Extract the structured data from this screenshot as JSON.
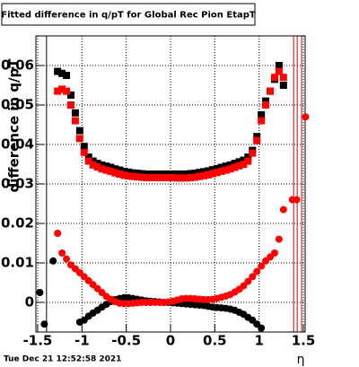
{
  "chart_data": {
    "type": "scatter",
    "title": "Fitted difference in q/pT for Global Rec Pion EtapT",
    "y_label": "difference in q/pT",
    "x_label": "η",
    "footer": "Tue Dec 21 12:52:58 2021",
    "xlim": [
      -1.52,
      1.52
    ],
    "ylim": [
      -0.0075,
      0.0675
    ],
    "xticks": [
      -1.5,
      -1,
      -0.5,
      0,
      0.5,
      1,
      1.5
    ],
    "yticks": [
      0,
      0.01,
      0.02,
      0.03,
      0.04,
      0.05,
      0.06
    ],
    "grid": true,
    "vlines": [
      {
        "x": -1.4,
        "color": "#000000"
      },
      {
        "x": 1.39,
        "color": "#cc0000"
      },
      {
        "x": 1.43,
        "color": "#cc0000"
      },
      {
        "x": 1.48,
        "color": "#cc0000"
      }
    ],
    "series": [
      {
        "marker": "square",
        "color": "#000000",
        "x": [
          -1.275,
          -1.225,
          -1.175,
          -1.125,
          -1.075,
          -1.025,
          -0.975,
          -0.925,
          -0.875,
          -0.825,
          -0.775,
          -0.725,
          -0.675,
          -0.625,
          -0.575,
          -0.525,
          -0.475,
          -0.425,
          -0.375,
          -0.325,
          -0.275,
          -0.225,
          -0.175,
          -0.125,
          -0.075,
          -0.025,
          0.025,
          0.075,
          0.125,
          0.175,
          0.225,
          0.275,
          0.325,
          0.375,
          0.425,
          0.475,
          0.525,
          0.575,
          0.625,
          0.675,
          0.725,
          0.775,
          0.825,
          0.875,
          0.925,
          0.975,
          1.025,
          1.075,
          1.125,
          1.175,
          1.225,
          1.275
        ],
        "values": [
          0.0585,
          0.058,
          0.0575,
          0.0525,
          0.048,
          0.0435,
          0.0395,
          0.0368,
          0.0358,
          0.0352,
          0.0348,
          0.0345,
          0.0342,
          0.0338,
          0.0335,
          0.0332,
          0.033,
          0.0328,
          0.0327,
          0.0326,
          0.0325,
          0.0325,
          0.0325,
          0.0325,
          0.0325,
          0.0325,
          0.0325,
          0.0325,
          0.0325,
          0.0325,
          0.0326,
          0.0327,
          0.0329,
          0.0331,
          0.0333,
          0.0336,
          0.0339,
          0.0342,
          0.0345,
          0.0348,
          0.0352,
          0.0356,
          0.036,
          0.0368,
          0.0385,
          0.042,
          0.0475,
          0.051,
          0.0535,
          0.0565,
          0.06,
          0.055
        ]
      },
      {
        "marker": "square",
        "color": "#ff0000",
        "x": [
          -1.275,
          -1.225,
          -1.175,
          -1.125,
          -1.075,
          -1.025,
          -0.975,
          -0.925,
          -0.875,
          -0.825,
          -0.775,
          -0.725,
          -0.675,
          -0.625,
          -0.575,
          -0.525,
          -0.475,
          -0.425,
          -0.375,
          -0.325,
          -0.275,
          -0.225,
          -0.175,
          -0.125,
          -0.075,
          -0.025,
          0.025,
          0.075,
          0.125,
          0.175,
          0.225,
          0.275,
          0.325,
          0.375,
          0.425,
          0.475,
          0.525,
          0.575,
          0.625,
          0.675,
          0.725,
          0.775,
          0.825,
          0.875,
          0.925,
          0.975,
          1.025,
          1.075,
          1.125,
          1.175,
          1.225,
          1.275
        ],
        "values": [
          0.0535,
          0.054,
          0.0535,
          0.05,
          0.046,
          0.0415,
          0.038,
          0.0358,
          0.0348,
          0.0343,
          0.0338,
          0.0335,
          0.0332,
          0.0328,
          0.0325,
          0.0322,
          0.032,
          0.0319,
          0.0318,
          0.0317,
          0.0316,
          0.0316,
          0.0316,
          0.0316,
          0.0316,
          0.0316,
          0.0316,
          0.0315,
          0.0315,
          0.0315,
          0.0316,
          0.0317,
          0.0319,
          0.0321,
          0.0323,
          0.0326,
          0.0329,
          0.0332,
          0.0335,
          0.0338,
          0.0342,
          0.0346,
          0.035,
          0.0358,
          0.0378,
          0.041,
          0.046,
          0.05,
          0.0535,
          0.057,
          0.0585,
          0.057
        ]
      },
      {
        "marker": "circle",
        "color": "#000000",
        "x": [
          -1.475,
          -1.425,
          -1.325,
          -1.025,
          -0.975,
          -0.925,
          -0.875,
          -0.825,
          -0.775,
          -0.725,
          -0.675,
          -0.625,
          -0.575,
          -0.525,
          -0.475,
          -0.425,
          -0.375,
          -0.325,
          -0.275,
          -0.225,
          -0.175,
          -0.125,
          -0.075,
          -0.025,
          0.025,
          0.075,
          0.125,
          0.175,
          0.225,
          0.275,
          0.325,
          0.375,
          0.425,
          0.475,
          0.525,
          0.575,
          0.625,
          0.675,
          0.725,
          0.775,
          0.825,
          0.875,
          0.925,
          0.975,
          1.025
        ],
        "values": [
          0.0025,
          -0.0055,
          0.0105,
          -0.005,
          -0.0045,
          -0.0035,
          -0.0027,
          -0.002,
          -0.0012,
          -0.0005,
          0.0002,
          0.0007,
          0.001,
          0.0012,
          0.0012,
          0.001,
          0.0008,
          0.0006,
          0.0004,
          0.0003,
          0.0002,
          0.0001,
          0,
          0,
          -0.0001,
          -0.0002,
          -0.0003,
          -0.0004,
          -0.0005,
          -0.0006,
          -0.0007,
          -0.0008,
          -0.001,
          -0.0012,
          -0.0013,
          -0.0014,
          -0.0015,
          -0.0017,
          -0.002,
          -0.0025,
          -0.003,
          -0.0038,
          -0.0045,
          -0.0055,
          -0.0065
        ]
      },
      {
        "marker": "circle",
        "color": "#ff0000",
        "x": [
          -1.275,
          -1.225,
          -1.175,
          -1.125,
          -1.075,
          -1.025,
          -0.975,
          -0.925,
          -0.875,
          -0.825,
          -0.775,
          -0.725,
          -0.675,
          -0.625,
          -0.575,
          -0.525,
          -0.475,
          -0.425,
          -0.375,
          -0.325,
          -0.275,
          -0.225,
          -0.175,
          -0.125,
          -0.075,
          -0.025,
          0.025,
          0.075,
          0.125,
          0.175,
          0.225,
          0.275,
          0.325,
          0.375,
          0.425,
          0.475,
          0.525,
          0.575,
          0.625,
          0.675,
          0.725,
          0.775,
          0.825,
          0.875,
          0.925,
          0.975,
          1.025,
          1.075,
          1.125,
          1.175,
          1.225,
          1.275,
          1.375,
          1.425,
          1.525
        ],
        "values": [
          0.0175,
          0.0125,
          0.011,
          0.0095,
          0.0085,
          0.0075,
          0.0065,
          0.0055,
          0.0045,
          0.0035,
          0.0025,
          0.0015,
          0.0008,
          0.0002,
          -0.0002,
          -0.0003,
          -0.0003,
          -0.0002,
          -0.0001,
          0,
          0,
          0,
          0,
          0,
          0,
          0.0001,
          0.0003,
          0.0006,
          0.0009,
          0.001,
          0.001,
          0.0009,
          0.0008,
          0.0007,
          0.0007,
          0.0008,
          0.001,
          0.0013,
          0.0016,
          0.002,
          0.0026,
          0.0033,
          0.0042,
          0.0053,
          0.0065,
          0.0078,
          0.0092,
          0.0105,
          0.0115,
          0.0125,
          0.016,
          0.0235,
          0.026,
          0.026,
          0.047
        ]
      }
    ]
  }
}
